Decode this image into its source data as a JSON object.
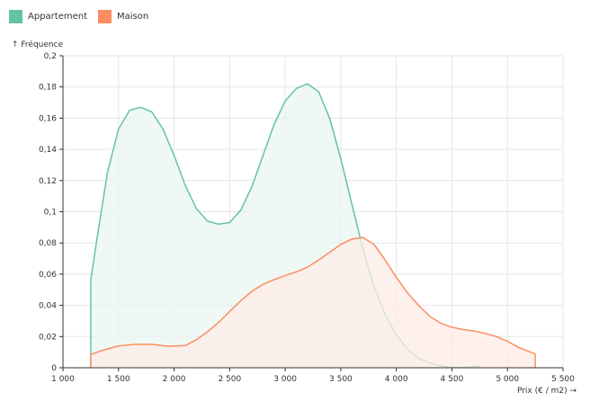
{
  "chart_data": {
    "type": "area",
    "xlabel": "Prix (€ / m2) →",
    "ylabel": "↑ Fréquence",
    "xlim": [
      1000,
      5500
    ],
    "ylim": [
      0,
      0.2
    ],
    "x_ticks": [
      1000,
      1500,
      2000,
      2500,
      3000,
      3500,
      4000,
      4500,
      5000,
      5500
    ],
    "x_tick_labels": [
      "1 000",
      "1 500",
      "2 000",
      "2 500",
      "3 000",
      "3 500",
      "4 000",
      "4 500",
      "5 000",
      "5 500"
    ],
    "y_ticks": [
      0,
      0.02,
      0.04,
      0.06,
      0.08,
      0.1,
      0.12,
      0.14,
      0.16,
      0.18,
      0.2
    ],
    "y_tick_labels": [
      "0",
      "0,02",
      "0,04",
      "0,06",
      "0,08",
      "0,1",
      "0,12",
      "0,14",
      "0,16",
      "0,18",
      "0,2"
    ],
    "grid": true,
    "legend_position": "top-left",
    "series": [
      {
        "name": "Appartement",
        "color": "#66c2a5",
        "fill": "#eaf6f1",
        "points": [
          [
            1250,
            0.0
          ],
          [
            1250,
            0.056
          ],
          [
            1300,
            0.08
          ],
          [
            1400,
            0.125
          ],
          [
            1500,
            0.153
          ],
          [
            1600,
            0.165
          ],
          [
            1700,
            0.167
          ],
          [
            1800,
            0.164
          ],
          [
            1900,
            0.153
          ],
          [
            2000,
            0.136
          ],
          [
            2100,
            0.117
          ],
          [
            2200,
            0.102
          ],
          [
            2300,
            0.094
          ],
          [
            2400,
            0.092
          ],
          [
            2500,
            0.093
          ],
          [
            2600,
            0.101
          ],
          [
            2700,
            0.116
          ],
          [
            2800,
            0.136
          ],
          [
            2900,
            0.156
          ],
          [
            3000,
            0.171
          ],
          [
            3100,
            0.179
          ],
          [
            3200,
            0.182
          ],
          [
            3300,
            0.177
          ],
          [
            3400,
            0.16
          ],
          [
            3500,
            0.134
          ],
          [
            3600,
            0.105
          ],
          [
            3700,
            0.076
          ],
          [
            3800,
            0.052
          ],
          [
            3900,
            0.034
          ],
          [
            4000,
            0.021
          ],
          [
            4100,
            0.012
          ],
          [
            4200,
            0.006
          ],
          [
            4300,
            0.003
          ],
          [
            4400,
            0.0012
          ],
          [
            4500,
            0.0003
          ],
          [
            4600,
            0.0002
          ],
          [
            4750,
            0.0012
          ],
          [
            4750,
            0.0
          ]
        ]
      },
      {
        "name": "Maison",
        "color": "#fc8d62",
        "fill": "#fdece6",
        "points": [
          [
            1250,
            0.0
          ],
          [
            1250,
            0.0085
          ],
          [
            1350,
            0.011
          ],
          [
            1500,
            0.014
          ],
          [
            1650,
            0.015
          ],
          [
            1800,
            0.015
          ],
          [
            1950,
            0.0138
          ],
          [
            2100,
            0.0142
          ],
          [
            2200,
            0.018
          ],
          [
            2300,
            0.023
          ],
          [
            2400,
            0.029
          ],
          [
            2500,
            0.036
          ],
          [
            2600,
            0.043
          ],
          [
            2700,
            0.049
          ],
          [
            2800,
            0.0535
          ],
          [
            2900,
            0.0565
          ],
          [
            3000,
            0.059
          ],
          [
            3100,
            0.0615
          ],
          [
            3200,
            0.0645
          ],
          [
            3300,
            0.069
          ],
          [
            3400,
            0.074
          ],
          [
            3500,
            0.079
          ],
          [
            3600,
            0.0825
          ],
          [
            3700,
            0.0835
          ],
          [
            3800,
            0.079
          ],
          [
            3900,
            0.069
          ],
          [
            4000,
            0.058
          ],
          [
            4100,
            0.048
          ],
          [
            4200,
            0.04
          ],
          [
            4300,
            0.033
          ],
          [
            4400,
            0.0285
          ],
          [
            4500,
            0.026
          ],
          [
            4600,
            0.0245
          ],
          [
            4700,
            0.0235
          ],
          [
            4800,
            0.022
          ],
          [
            4900,
            0.02
          ],
          [
            5000,
            0.017
          ],
          [
            5100,
            0.013
          ],
          [
            5250,
            0.0088
          ],
          [
            5250,
            0.0
          ]
        ]
      }
    ]
  }
}
